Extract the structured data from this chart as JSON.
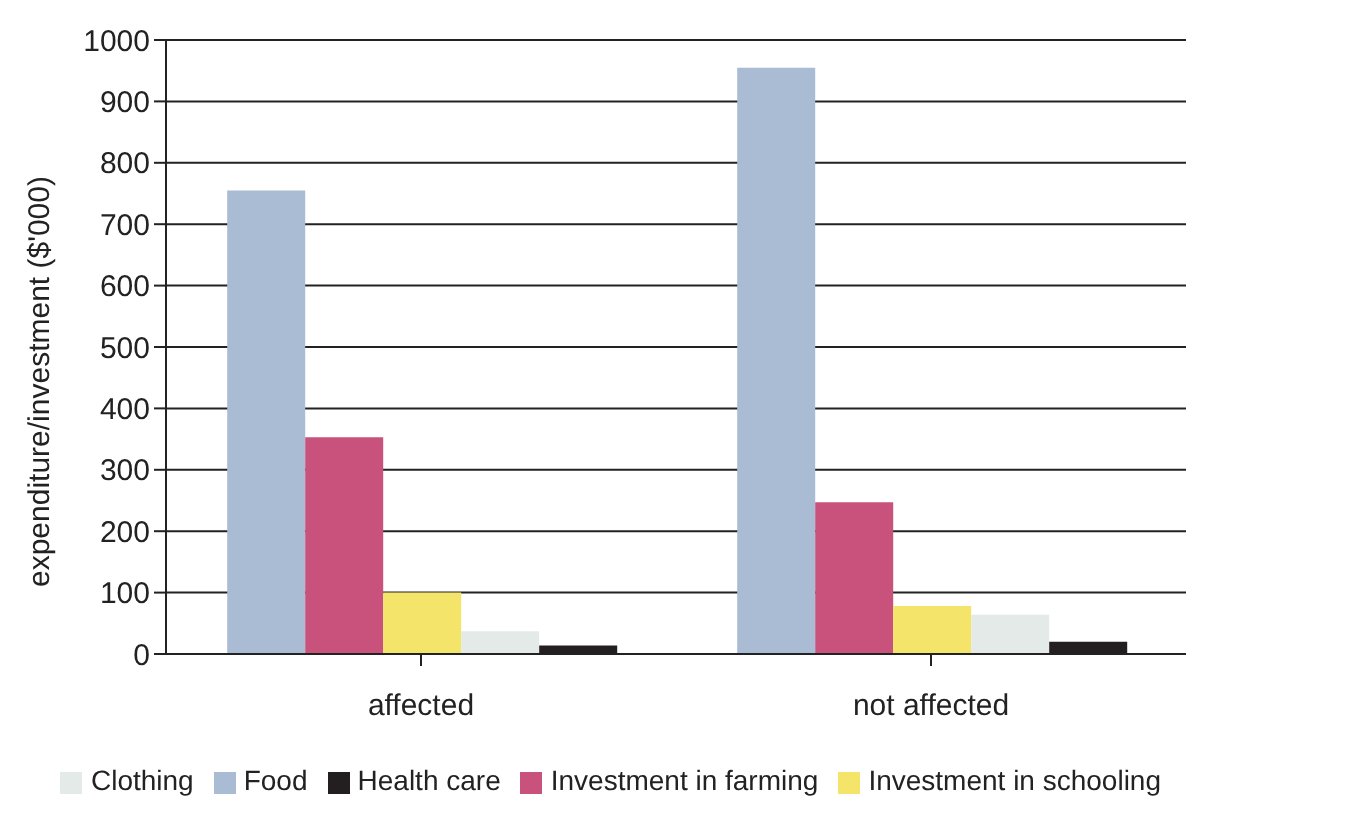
{
  "chart_data": {
    "type": "bar",
    "ylabel": "expenditure/investment ($'000)",
    "categories": [
      "affected",
      "not affected"
    ],
    "series": [
      {
        "name": "Food",
        "color": "#aabbd4",
        "values": [
          755,
          955
        ]
      },
      {
        "name": "Investment in farming",
        "color": "#c9527d",
        "values": [
          353,
          247
        ]
      },
      {
        "name": "Investment in schooling",
        "color": "#f4e46a",
        "values": [
          100,
          78
        ]
      },
      {
        "name": "Clothing",
        "color": "#e4eae8",
        "values": [
          37,
          64
        ]
      },
      {
        "name": "Health care",
        "color": "#231f20",
        "values": [
          14,
          20
        ]
      }
    ],
    "ylim": [
      0,
      1000
    ],
    "yticks": [
      0,
      100,
      200,
      300,
      400,
      500,
      600,
      700,
      800,
      900,
      1000
    ],
    "grid": "y",
    "legend": "bottom"
  }
}
